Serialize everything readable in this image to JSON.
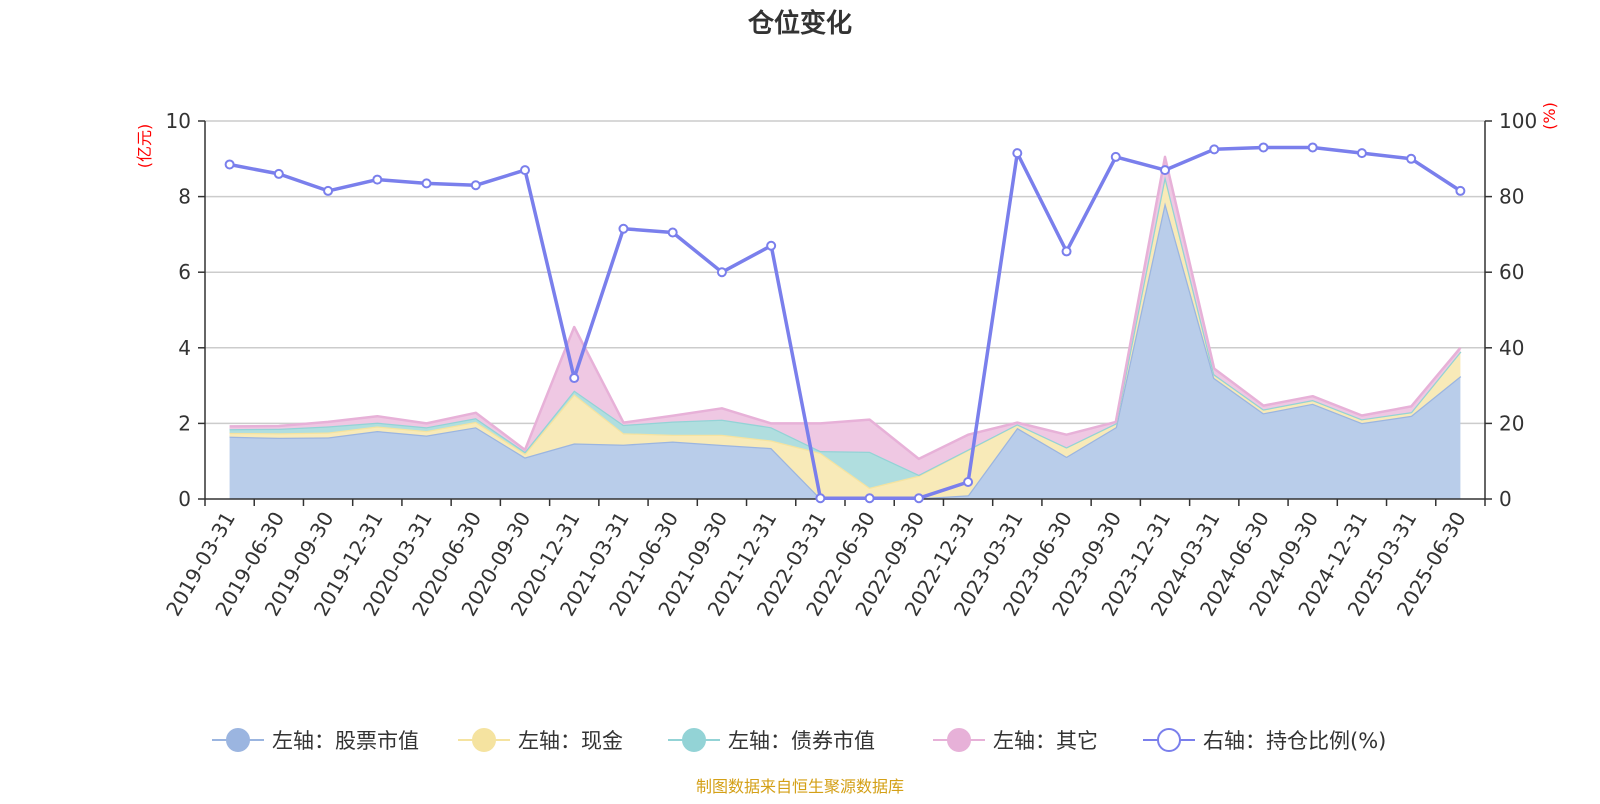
{
  "chart_data": {
    "type": "area",
    "title": "仓位变化",
    "left_unit": "(亿元)",
    "right_unit": "(%)",
    "ylim_left": [
      0,
      10
    ],
    "yticks_left": [
      "0",
      "2",
      "4",
      "6",
      "8",
      "10"
    ],
    "ylim_right": [
      0,
      100
    ],
    "yticks_right": [
      "0",
      "20",
      "40",
      "60",
      "80",
      "100"
    ],
    "grid": true,
    "legend_position": "bottom",
    "categories": [
      "2019-03-31",
      "2019-06-30",
      "2019-09-30",
      "2019-12-31",
      "2020-03-31",
      "2020-06-30",
      "2020-09-30",
      "2020-12-31",
      "2021-03-31",
      "2021-06-30",
      "2021-09-30",
      "2021-12-31",
      "2022-03-31",
      "2022-06-30",
      "2022-09-30",
      "2022-12-31",
      "2023-03-31",
      "2023-06-30",
      "2023-09-30",
      "2023-12-31",
      "2024-03-31",
      "2024-06-30",
      "2024-09-30",
      "2024-12-31",
      "2025-03-31",
      "2025-06-30"
    ],
    "stacked_series": [
      {
        "name": "左轴：股票市值",
        "color": "#9bb5e0",
        "fill": "#b9cdea",
        "values": [
          1.65,
          1.62,
          1.63,
          1.8,
          1.68,
          1.9,
          1.1,
          1.47,
          1.44,
          1.52,
          1.43,
          1.35,
          0.02,
          0.02,
          0.02,
          0.1,
          1.88,
          1.12,
          1.9,
          7.85,
          3.2,
          2.27,
          2.52,
          2.01,
          2.2,
          3.25
        ]
      },
      {
        "name": "左轴：现金",
        "color": "#f5e3a0",
        "fill": "#f8eab8",
        "values": [
          0.1,
          0.12,
          0.13,
          0.12,
          0.12,
          0.14,
          0.1,
          1.3,
          0.3,
          0.18,
          0.27,
          0.2,
          1.2,
          0.28,
          0.6,
          1.2,
          0.1,
          0.25,
          0.1,
          0.7,
          0.1,
          0.1,
          0.1,
          0.1,
          0.1,
          0.65
        ]
      },
      {
        "name": "左轴：债券市值",
        "color": "#93d3d6",
        "fill": "#b0dedf",
        "values": [
          0.1,
          0.12,
          0.16,
          0.1,
          0.1,
          0.1,
          0.05,
          0.1,
          0.22,
          0.35,
          0.4,
          0.35,
          0.05,
          0.95,
          0.02,
          0.01,
          0.0,
          0.0,
          0.0,
          0.0,
          0.0,
          0.0,
          0.0,
          0.0,
          0.0,
          0.0
        ]
      },
      {
        "name": "左轴：其它",
        "color": "#e7b1d8",
        "fill": "#efc8e3",
        "values": [
          0.07,
          0.07,
          0.12,
          0.17,
          0.1,
          0.14,
          0.05,
          1.68,
          0.06,
          0.15,
          0.3,
          0.1,
          0.73,
          0.85,
          0.42,
          0.39,
          0.04,
          0.33,
          0.04,
          0.5,
          0.15,
          0.1,
          0.1,
          0.1,
          0.15,
          0.1
        ]
      }
    ],
    "line_series": {
      "name": "右轴：持仓比例(%)",
      "color": "#7a7fec",
      "values": [
        88.5,
        86.0,
        81.5,
        84.5,
        83.5,
        83.0,
        87.0,
        32.0,
        71.5,
        70.5,
        60.0,
        67.0,
        0.2,
        0.2,
        0.2,
        4.5,
        91.5,
        65.5,
        90.5,
        87.0,
        92.5,
        93.0,
        93.0,
        91.5,
        90.0,
        81.5
      ]
    },
    "source_note": "制图数据来自恒生聚源数据库"
  }
}
